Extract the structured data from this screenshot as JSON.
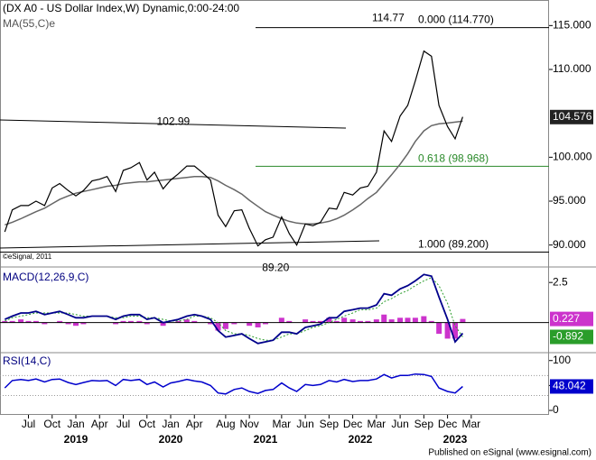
{
  "title": "(DX A0 - US Dollar Index,W) Dynamic,0:00-24:00",
  "copyright": "©eSignal, 2011",
  "footer": "Published on eSignal (www.esignal.com)",
  "chart_data": [
    {
      "type": "line",
      "title": "MA(55,C)e",
      "x": [
        2018.25,
        2018.33,
        2018.42,
        2018.5,
        2018.58,
        2018.67,
        2018.75,
        2018.83,
        2018.92,
        2019.0,
        2019.08,
        2019.17,
        2019.25,
        2019.33,
        2019.42,
        2019.5,
        2019.58,
        2019.67,
        2019.75,
        2019.83,
        2019.92,
        2020.0,
        2020.08,
        2020.17,
        2020.25,
        2020.33,
        2020.42,
        2020.5,
        2020.58,
        2020.67,
        2020.75,
        2020.83,
        2020.92,
        2021.0,
        2021.08,
        2021.17,
        2021.25,
        2021.33,
        2021.42,
        2021.5,
        2021.58,
        2021.67,
        2021.75,
        2021.83,
        2021.92,
        2022.0,
        2022.08,
        2022.17,
        2022.25,
        2022.33,
        2022.42,
        2022.5,
        2022.58,
        2022.67,
        2022.75,
        2022.83,
        2022.92,
        2023.0,
        2023.08
      ],
      "series": [
        {
          "color": "#000000",
          "values": [
            91.5,
            94.0,
            94.5,
            94.5,
            95.0,
            94.5,
            96.5,
            97.0,
            96.2,
            95.6,
            96.2,
            97.3,
            97.5,
            97.8,
            96.1,
            98.5,
            98.8,
            99.4,
            97.4,
            98.3,
            96.4,
            97.4,
            98.1,
            99.0,
            99.0,
            98.3,
            97.4,
            93.4,
            92.1,
            93.9,
            94.0,
            91.9,
            89.9,
            90.6,
            90.9,
            93.2,
            91.3,
            90.0,
            92.4,
            92.2,
            92.6,
            94.2,
            94.1,
            96.0,
            95.7,
            96.5,
            96.7,
            98.3,
            103.0,
            101.8,
            104.7,
            105.9,
            108.7,
            112.1,
            111.5,
            105.9,
            103.5,
            102.1,
            104.6
          ]
        },
        {
          "color": "#666666",
          "values": [
            92.3,
            92.6,
            93.0,
            93.4,
            93.8,
            94.2,
            94.7,
            95.2,
            95.6,
            95.9,
            96.1,
            96.3,
            96.5,
            96.7,
            96.8,
            97.0,
            97.1,
            97.2,
            97.2,
            97.3,
            97.4,
            97.5,
            97.6,
            97.7,
            97.8,
            97.8,
            97.7,
            97.3,
            96.8,
            96.3,
            95.8,
            95.1,
            94.4,
            93.8,
            93.4,
            93.0,
            92.7,
            92.5,
            92.4,
            92.4,
            92.5,
            92.7,
            93.0,
            93.4,
            94.0,
            94.6,
            95.3,
            96.0,
            97.0,
            98.0,
            99.2,
            100.4,
            101.8,
            103.0,
            103.6,
            103.8,
            103.9,
            104.0,
            104.1
          ]
        }
      ],
      "last": 104.576,
      "ylim": [
        87.5,
        117.5
      ],
      "yticks": [
        {
          "value": 90,
          "label": "90.000"
        },
        {
          "value": 95,
          "label": "95.000"
        },
        {
          "value": 100,
          "label": "100.000"
        },
        {
          "value": 110,
          "label": "110.000"
        },
        {
          "value": 115,
          "label": "115.000"
        }
      ],
      "fib_levels": [
        {
          "value": 114.77,
          "label": "0.000 (114.770)",
          "color": "#000000"
        },
        {
          "value": 98.968,
          "label": "0.618 (98.968)",
          "color": "#2a8a2a"
        },
        {
          "value": 89.2,
          "label": "1.000 (89.200)",
          "color": "#000000"
        }
      ],
      "annotations": [
        {
          "label": "114.77",
          "value": 114.77,
          "x": 2022.75
        },
        {
          "label": "102.99",
          "value": 102.99,
          "x": 2020.17
        },
        {
          "label": "89.20",
          "value": 89.2,
          "x": 2021.25
        }
      ],
      "xticks": [
        {
          "value": 2018.5,
          "label": "Jul"
        },
        {
          "value": 2018.75,
          "label": "Oct"
        },
        {
          "value": 2019.0,
          "label": "Jan"
        },
        {
          "value": 2019.25,
          "label": "Apr"
        },
        {
          "value": 2019.5,
          "label": "Jul"
        },
        {
          "value": 2019.75,
          "label": "Oct"
        },
        {
          "value": 2020.0,
          "label": "Jan"
        },
        {
          "value": 2020.25,
          "label": "Apr"
        },
        {
          "value": 2020.58,
          "label": "Aug"
        },
        {
          "value": 2020.83,
          "label": "Nov"
        },
        {
          "value": 2021.17,
          "label": "Mar"
        },
        {
          "value": 2021.42,
          "label": "Jun"
        },
        {
          "value": 2021.67,
          "label": "Sep"
        },
        {
          "value": 2021.92,
          "label": "Dec"
        },
        {
          "value": 2022.17,
          "label": "Mar"
        },
        {
          "value": 2022.42,
          "label": "Jun"
        },
        {
          "value": 2022.67,
          "label": "Sep"
        },
        {
          "value": 2022.92,
          "label": "Dec"
        },
        {
          "value": 2023.17,
          "label": "Mar"
        }
      ],
      "year_ticks": [
        {
          "value": 2019.0,
          "label": "2019"
        },
        {
          "value": 2020.0,
          "label": "2020"
        },
        {
          "value": 2021.0,
          "label": "2021"
        },
        {
          "value": 2022.0,
          "label": "2022"
        },
        {
          "value": 2023.0,
          "label": "2023"
        }
      ]
    },
    {
      "type": "macd",
      "title": "MACD(12,26,9,C)",
      "series": [
        {
          "color": "#00008b",
          "values": [
            0.2,
            0.4,
            0.6,
            0.6,
            0.7,
            0.5,
            0.6,
            0.7,
            0.5,
            0.3,
            0.3,
            0.4,
            0.4,
            0.4,
            0.2,
            0.4,
            0.5,
            0.5,
            0.2,
            0.3,
            0.0,
            0.1,
            0.2,
            0.4,
            0.5,
            0.4,
            0.2,
            -0.5,
            -0.9,
            -0.8,
            -0.7,
            -1.0,
            -1.3,
            -1.2,
            -1.1,
            -0.6,
            -0.6,
            -0.7,
            -0.3,
            -0.2,
            -0.1,
            0.3,
            0.3,
            0.7,
            0.8,
            0.9,
            0.9,
            1.1,
            1.8,
            1.7,
            2.1,
            2.3,
            2.6,
            3.0,
            2.9,
            1.6,
            0.2,
            -1.2,
            -0.665
          ]
        },
        {
          "color": "#2a9d2a",
          "values": [
            0.1,
            0.3,
            0.4,
            0.5,
            0.6,
            0.6,
            0.6,
            0.6,
            0.6,
            0.5,
            0.4,
            0.4,
            0.4,
            0.4,
            0.3,
            0.3,
            0.4,
            0.4,
            0.3,
            0.3,
            0.2,
            0.1,
            0.1,
            0.2,
            0.4,
            0.4,
            0.3,
            0.0,
            -0.5,
            -0.7,
            -0.7,
            -0.8,
            -1.0,
            -1.1,
            -1.1,
            -0.9,
            -0.7,
            -0.7,
            -0.5,
            -0.3,
            -0.2,
            0.0,
            0.2,
            0.4,
            0.6,
            0.8,
            0.8,
            0.9,
            1.3,
            1.5,
            1.8,
            2.0,
            2.3,
            2.6,
            2.8,
            2.3,
            1.2,
            -0.2,
            -0.892
          ]
        },
        {
          "color": "#cc33cc",
          "values": [
            0.1,
            0.1,
            0.2,
            0.1,
            0.1,
            -0.1,
            0,
            0.1,
            -0.1,
            -0.2,
            -0.1,
            0,
            0,
            0,
            -0.1,
            0.1,
            0.1,
            0.1,
            -0.1,
            0,
            -0.2,
            0,
            0.1,
            0.2,
            0.1,
            0,
            -0.1,
            -0.5,
            -0.4,
            -0.1,
            0,
            -0.2,
            -0.3,
            -0.1,
            0,
            0.3,
            0.1,
            0,
            0.2,
            0.1,
            0.1,
            0.3,
            0.1,
            0.3,
            0.2,
            0.1,
            0.1,
            0.2,
            0.5,
            0.2,
            0.3,
            0.3,
            0.3,
            0.4,
            0.1,
            -0.7,
            -1.0,
            -1.0,
            0.227
          ]
        }
      ],
      "ylim": [
        -1.875,
        3.41
      ],
      "yticks": [
        2.5
      ]
    },
    {
      "type": "rsi",
      "title": "RSI(14,C)",
      "series": [
        {
          "color": "#0000cc",
          "values": [
            45,
            60,
            62,
            60,
            63,
            57,
            62,
            63,
            56,
            52,
            56,
            60,
            59,
            60,
            50,
            62,
            60,
            62,
            52,
            57,
            47,
            55,
            58,
            62,
            59,
            57,
            50,
            35,
            33,
            42,
            45,
            38,
            34,
            40,
            42,
            55,
            45,
            38,
            52,
            50,
            52,
            60,
            57,
            62,
            58,
            60,
            60,
            63,
            72,
            65,
            70,
            70,
            73,
            72,
            68,
            45,
            38,
            35,
            48.042
          ]
        }
      ],
      "levels": [
        70,
        30
      ],
      "ylim": [
        -9,
        114
      ],
      "yticks": [
        100,
        50,
        0
      ]
    }
  ]
}
